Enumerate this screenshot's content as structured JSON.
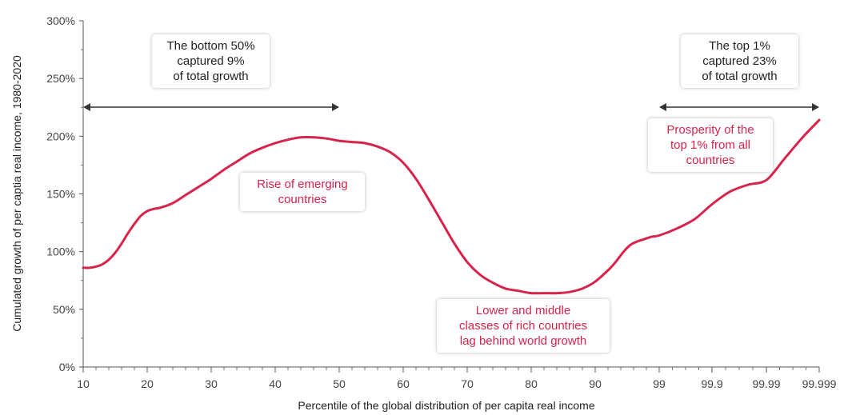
{
  "chart_data": {
    "type": "line",
    "xlabel": "Percentile of the global distribution of per capita real income",
    "ylabel": "Cumulated growth of per captia real income, 1980-2020",
    "x_tick_labels": [
      "10",
      "20",
      "30",
      "40",
      "50",
      "60",
      "70",
      "80",
      "90",
      "99",
      "99.9",
      "99.99",
      "99.999"
    ],
    "y_tick_labels": [
      "0%",
      "50%",
      "100%",
      "150%",
      "200%",
      "250%",
      "300%"
    ],
    "ylim": [
      0,
      300
    ],
    "y_unit": "%",
    "grid": false,
    "line_color": "#d6244c",
    "series": [
      {
        "x": [
          10,
          11,
          12,
          13,
          14,
          15,
          16,
          17,
          18,
          19,
          20,
          21,
          22,
          24,
          26,
          28,
          30,
          32,
          34,
          36,
          38,
          40,
          42,
          44,
          46,
          48,
          50,
          52,
          54,
          56,
          58,
          60,
          62,
          64,
          66,
          68,
          70,
          72,
          74,
          76,
          78,
          80,
          82,
          84,
          86,
          88,
          90,
          92,
          93,
          94,
          95,
          96,
          97,
          98,
          99,
          99.3,
          99.6,
          99.9,
          99.93,
          99.96,
          99.99,
          99.993,
          99.996,
          99.999
        ],
        "values": [
          86,
          86,
          87,
          89,
          93,
          99,
          107,
          116,
          124,
          131,
          135,
          137,
          138,
          142,
          149,
          156,
          163,
          171,
          178,
          185,
          190,
          194,
          197,
          199,
          199,
          198,
          196,
          195,
          194,
          191,
          186,
          177,
          163,
          145,
          126,
          107,
          91,
          80,
          73,
          68,
          66,
          64,
          64,
          64,
          65,
          68,
          74,
          85,
          92,
          100,
          106,
          109,
          111,
          113,
          114,
          120,
          128,
          141,
          152,
          158,
          162,
          180,
          198,
          214
        ]
      }
    ],
    "annotations": [
      {
        "lines": [
          "The bottom 50%",
          "captured 9%",
          "of total growth"
        ],
        "x_range": [
          10,
          50
        ],
        "color": "#222222"
      },
      {
        "lines": [
          "The top 1%",
          "captured 23%",
          "of total growth"
        ],
        "x_range": [
          99,
          99.999
        ],
        "color": "#222222"
      },
      {
        "lines": [
          "Rise of emerging",
          "countries"
        ],
        "color": "#d6244c"
      },
      {
        "lines": [
          "Prosperity of the",
          "top 1% from all",
          "countries"
        ],
        "color": "#d6244c"
      },
      {
        "lines": [
          "Lower and middle",
          "classes of rich countries",
          "lag behind world growth"
        ],
        "color": "#d6244c"
      }
    ]
  }
}
